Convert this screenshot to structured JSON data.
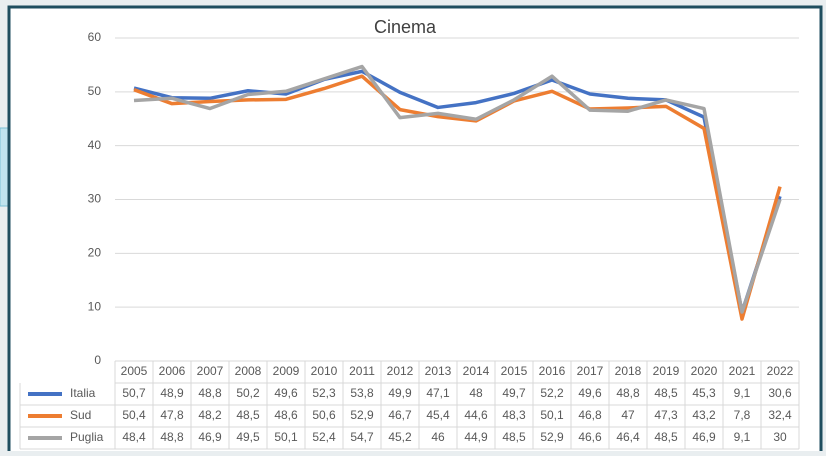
{
  "chart_data": {
    "type": "line",
    "title": "Cinema",
    "categories": [
      "2005",
      "2006",
      "2007",
      "2008",
      "2009",
      "2010",
      "2011",
      "2012",
      "2013",
      "2014",
      "2015",
      "2016",
      "2017",
      "2018",
      "2019",
      "2020",
      "2021",
      "2022"
    ],
    "series": [
      {
        "name": "Italia",
        "color": "#4472c4",
        "values": [
          50.7,
          48.9,
          48.8,
          50.2,
          49.6,
          52.3,
          53.8,
          49.9,
          47.1,
          48,
          49.7,
          52.2,
          49.6,
          48.8,
          48.5,
          45.3,
          9.1,
          30.6
        ],
        "value_labels": [
          "50,7",
          "48,9",
          "48,8",
          "50,2",
          "49,6",
          "52,3",
          "53,8",
          "49,9",
          "47,1",
          "48",
          "49,7",
          "52,2",
          "49,6",
          "48,8",
          "48,5",
          "45,3",
          "9,1",
          "30,6"
        ]
      },
      {
        "name": "Sud",
        "color": "#ed7d31",
        "values": [
          50.4,
          47.8,
          48.2,
          48.5,
          48.6,
          50.6,
          52.9,
          46.7,
          45.4,
          44.6,
          48.3,
          50.1,
          46.8,
          47,
          47.3,
          43.2,
          7.8,
          32.4
        ],
        "value_labels": [
          "50,4",
          "47,8",
          "48,2",
          "48,5",
          "48,6",
          "50,6",
          "52,9",
          "46,7",
          "45,4",
          "44,6",
          "48,3",
          "50,1",
          "46,8",
          "47",
          "47,3",
          "43,2",
          "7,8",
          "32,4"
        ]
      },
      {
        "name": "Puglia",
        "color": "#a5a5a5",
        "values": [
          48.4,
          48.8,
          46.9,
          49.5,
          50.1,
          52.4,
          54.7,
          45.2,
          46,
          44.9,
          48.5,
          52.9,
          46.6,
          46.4,
          48.5,
          46.9,
          9.1,
          30
        ],
        "value_labels": [
          "48,4",
          "48,8",
          "46,9",
          "49,5",
          "50,1",
          "52,4",
          "54,7",
          "45,2",
          "46",
          "44,9",
          "48,5",
          "52,9",
          "46,6",
          "46,4",
          "48,5",
          "46,9",
          "9,1",
          "30"
        ]
      }
    ],
    "ylim": [
      0,
      60
    ],
    "yticks": [
      0,
      10,
      20,
      30,
      40,
      50,
      60
    ],
    "grid": true
  }
}
